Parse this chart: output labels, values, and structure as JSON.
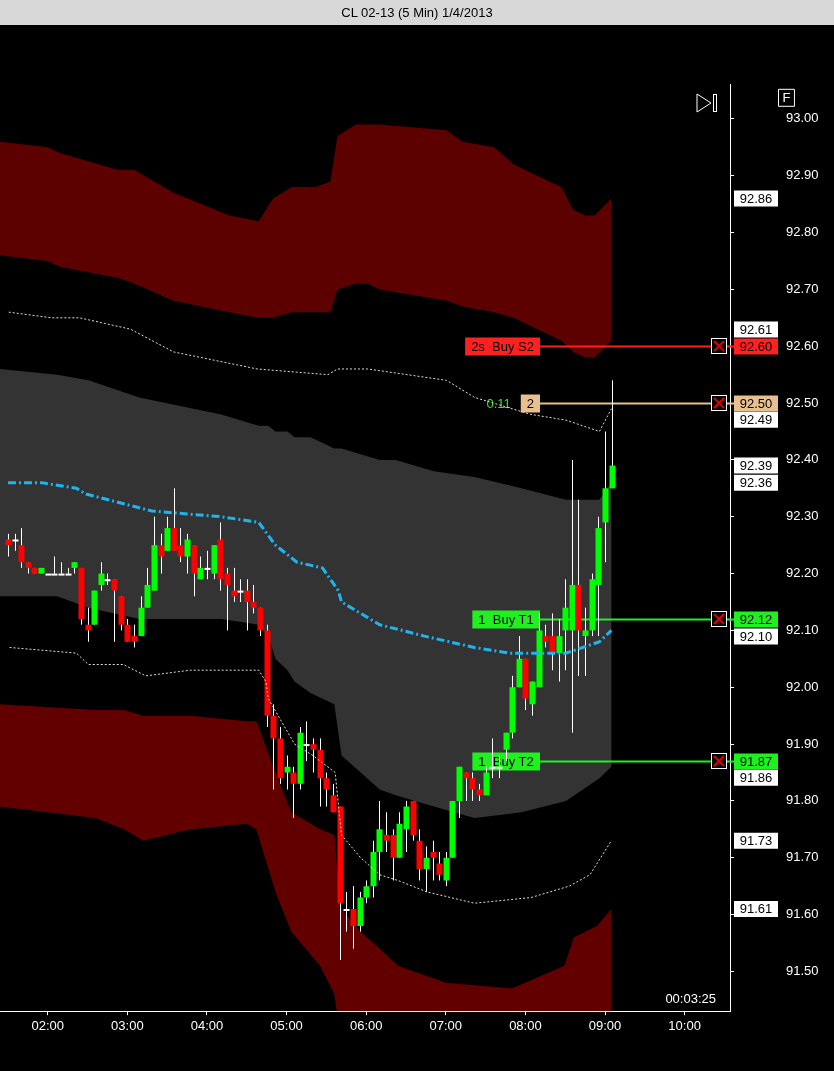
{
  "chart_data": {
    "type": "candlestick",
    "title": "CL 02-13 (5 Min)  1/4/2013",
    "x": [
      1.5,
      1.5833,
      1.6667,
      1.75,
      1.8333,
      1.9167,
      2,
      2.0833,
      2.1667,
      2.25,
      2.3333,
      2.4167,
      2.5,
      2.5833,
      2.6667,
      2.75,
      2.8333,
      2.9167,
      3,
      3.0833,
      3.1667,
      3.25,
      3.3333,
      3.4167,
      3.5,
      3.5833,
      3.6667,
      3.75,
      3.8333,
      3.9167,
      4,
      4.0833,
      4.1667,
      4.25,
      4.3333,
      4.4167,
      4.5,
      4.5833,
      4.6667,
      4.75,
      4.8333,
      4.9167,
      5,
      5.0833,
      5.1667,
      5.25,
      5.3333,
      5.4167,
      5.5,
      5.5833,
      5.6667,
      5.75,
      5.8333,
      5.9167,
      6,
      6.0833,
      6.1667,
      6.25,
      6.3333,
      6.4167,
      6.5,
      6.5833,
      6.6667,
      6.75,
      6.8333,
      6.9167,
      7,
      7.0833,
      7.1667,
      7.25,
      7.3333,
      7.4167,
      7.5,
      7.5833,
      7.6667,
      7.75,
      7.8333,
      7.9167,
      8,
      8.0833,
      8.1667,
      8.25,
      8.3333,
      8.4167,
      8.5,
      8.5833,
      8.6667,
      8.75,
      8.8333,
      8.9167,
      9,
      9.0833
    ],
    "ohlc": [
      [
        92.26,
        92.27,
        92.23,
        92.25
      ],
      [
        92.26,
        92.27,
        92.24,
        92.26
      ],
      [
        92.25,
        92.28,
        92.21,
        92.22
      ],
      [
        92.22,
        92.22,
        92.2,
        92.21
      ],
      [
        92.21,
        92.21,
        92.2,
        92.2
      ],
      [
        92.2,
        92.21,
        92.2,
        92.21
      ],
      [
        92.2,
        92.2,
        92.2,
        92.2
      ],
      [
        92.2,
        92.23,
        92.2,
        92.2
      ],
      [
        92.2,
        92.22,
        92.2,
        92.2
      ],
      [
        92.2,
        92.21,
        92.2,
        92.2
      ],
      [
        92.21,
        92.22,
        92.2,
        92.22
      ],
      [
        92.21,
        92.21,
        92.11,
        92.12
      ],
      [
        92.11,
        92.14,
        92.08,
        92.1
      ],
      [
        92.11,
        92.17,
        92.11,
        92.17
      ],
      [
        92.18,
        92.22,
        92.17,
        92.2
      ],
      [
        92.19,
        92.2,
        92.18,
        92.19
      ],
      [
        92.19,
        92.19,
        92.08,
        92.17
      ],
      [
        92.16,
        92.16,
        92.1,
        92.11
      ],
      [
        92.11,
        92.12,
        92.08,
        92.08
      ],
      [
        92.09,
        92.11,
        92.07,
        92.08
      ],
      [
        92.09,
        92.16,
        92.09,
        92.14
      ],
      [
        92.14,
        92.21,
        92.14,
        92.18
      ],
      [
        92.17,
        92.3,
        92.17,
        92.25
      ],
      [
        92.25,
        92.27,
        92.2,
        92.23
      ],
      [
        92.24,
        92.3,
        92.24,
        92.28
      ],
      [
        92.28,
        92.35,
        92.24,
        92.24
      ],
      [
        92.25,
        92.28,
        92.22,
        92.23
      ],
      [
        92.23,
        92.27,
        92.2,
        92.26
      ],
      [
        92.25,
        92.25,
        92.16,
        92.2
      ],
      [
        92.19,
        92.23,
        92.19,
        92.21
      ],
      [
        92.21,
        92.24,
        92.19,
        92.21
      ],
      [
        92.2,
        92.25,
        92.19,
        92.25
      ],
      [
        92.26,
        92.29,
        92.17,
        92.19
      ],
      [
        92.2,
        92.21,
        92.1,
        92.18
      ],
      [
        92.17,
        92.21,
        92.15,
        92.16
      ],
      [
        92.17,
        92.19,
        92.15,
        92.17
      ],
      [
        92.17,
        92.19,
        92.1,
        92.15
      ],
      [
        92.15,
        92.18,
        92.13,
        92.14
      ],
      [
        92.14,
        92.14,
        92.09,
        92.1
      ],
      [
        92.1,
        92.11,
        91.93,
        91.95
      ],
      [
        91.95,
        91.97,
        91.82,
        91.91
      ],
      [
        91.91,
        91.93,
        91.83,
        91.84
      ],
      [
        91.85,
        91.88,
        91.82,
        91.86
      ],
      [
        91.85,
        91.86,
        91.77,
        91.83
      ],
      [
        91.83,
        91.93,
        91.82,
        91.92
      ],
      [
        91.9,
        91.94,
        91.87,
        91.9
      ],
      [
        91.9,
        91.91,
        91.85,
        91.89
      ],
      [
        91.89,
        91.91,
        91.79,
        91.84
      ],
      [
        91.84,
        91.85,
        91.79,
        91.82
      ],
      [
        91.81,
        91.83,
        91.78,
        91.78
      ],
      [
        91.79,
        91.79,
        91.52,
        91.62
      ],
      [
        91.61,
        91.64,
        91.57,
        91.61
      ],
      [
        91.61,
        91.65,
        91.54,
        91.58
      ],
      [
        91.58,
        91.64,
        91.57,
        91.63
      ],
      [
        91.63,
        91.66,
        91.62,
        91.65
      ],
      [
        91.65,
        91.73,
        91.63,
        91.71
      ],
      [
        91.71,
        91.8,
        91.66,
        91.75
      ],
      [
        91.74,
        91.78,
        91.71,
        91.73
      ],
      [
        91.74,
        91.75,
        91.66,
        91.7
      ],
      [
        91.7,
        91.78,
        91.7,
        91.76
      ],
      [
        91.75,
        91.8,
        91.71,
        91.79
      ],
      [
        91.8,
        91.8,
        91.73,
        91.74
      ],
      [
        91.73,
        91.75,
        91.66,
        91.68
      ],
      [
        91.68,
        91.72,
        91.64,
        91.7
      ],
      [
        91.71,
        91.73,
        91.66,
        91.7
      ],
      [
        91.69,
        91.71,
        91.66,
        91.67
      ],
      [
        91.66,
        91.71,
        91.65,
        91.7
      ],
      [
        91.7,
        91.8,
        91.7,
        91.8
      ],
      [
        91.8,
        91.86,
        91.77,
        91.86
      ],
      [
        91.85,
        91.85,
        91.8,
        91.84
      ],
      [
        91.84,
        91.85,
        91.8,
        91.82
      ],
      [
        91.82,
        91.83,
        91.8,
        91.81
      ],
      [
        91.81,
        91.86,
        91.81,
        91.85
      ],
      [
        91.86,
        91.91,
        91.84,
        91.86
      ],
      [
        91.86,
        91.88,
        91.84,
        91.86
      ],
      [
        91.89,
        91.92,
        91.87,
        91.92
      ],
      [
        91.92,
        92.02,
        91.91,
        92
      ],
      [
        92,
        92.09,
        92,
        92.05
      ],
      [
        92.05,
        92.05,
        91.96,
        91.98
      ],
      [
        91.97,
        92.01,
        91.95,
        92.01
      ],
      [
        92,
        92.13,
        92,
        92.1
      ],
      [
        92.09,
        92.11,
        92.07,
        92.08
      ],
      [
        92.09,
        92.13,
        92.03,
        92.06
      ],
      [
        92.06,
        92.12,
        92.01,
        92.09
      ],
      [
        92.1,
        92.19,
        92.03,
        92.14
      ],
      [
        92.1,
        92.4,
        91.92,
        92.18
      ],
      [
        92.18,
        92.33,
        92.02,
        92.1
      ],
      [
        92.09,
        92.14,
        92.02,
        92.1
      ],
      [
        92.1,
        92.2,
        92.09,
        92.19
      ],
      [
        92.18,
        92.3,
        92.09,
        92.28
      ],
      [
        92.29,
        92.45,
        92.22,
        92.35
      ],
      [
        92.35,
        92.54,
        92.35,
        92.39
      ]
    ],
    "colors": [
      "#ff0000",
      "#ffffff",
      "#ff0000",
      "#ff0000",
      "#ff0000",
      "#00ff00",
      "#ffffff",
      "#ffffff",
      "#ffffff",
      "#ffffff",
      "#00ff00",
      "#ff0000",
      "#ff0000",
      "#00ff00",
      "#00ff00",
      "#ffffff",
      "#ff0000",
      "#ff0000",
      "#ff0000",
      "#ff0000",
      "#00ff00",
      "#00ff00",
      "#00ff00",
      "#ff0000",
      "#00ff00",
      "#ff0000",
      "#ff0000",
      "#00ff00",
      "#ff0000",
      "#00ff00",
      "#ffffff",
      "#00ff00",
      "#ff0000",
      "#ff0000",
      "#ff0000",
      "#ffffff",
      "#ff0000",
      "#ff0000",
      "#ff0000",
      "#ff0000",
      "#ff0000",
      "#ff0000",
      "#00ff00",
      "#ff0000",
      "#00ff00",
      "#ffffff",
      "#ff0000",
      "#ff0000",
      "#ff0000",
      "#ff0000",
      "#ff0000",
      "#ffffff",
      "#ff0000",
      "#00ff00",
      "#00ff00",
      "#00ff00",
      "#00ff00",
      "#ff0000",
      "#ff0000",
      "#00ff00",
      "#00ff00",
      "#ff0000",
      "#ff0000",
      "#00ff00",
      "#ff0000",
      "#ff0000",
      "#00ff00",
      "#00ff00",
      "#00ff00",
      "#ff0000",
      "#ff0000",
      "#ff0000",
      "#00ff00",
      "#ffffff",
      "#ffffff",
      "#00ff00",
      "#00ff00",
      "#00ff00",
      "#ff0000",
      "#00ff00",
      "#00ff00",
      "#ff0000",
      "#ff0000",
      "#00ff00",
      "#00ff00",
      "#00ff00",
      "#ff0000",
      "#00ff00",
      "#00ff00",
      "#00ff00",
      "#00ff00",
      "#00ff00"
    ],
    "color": "#ffffff",
    "series": [
      {
        "type": "line",
        "color": "#5c0000",
        "x": [
          1.4,
          2,
          2.15,
          2.89,
          3.09,
          3.58,
          4.28,
          4.65,
          4.83,
          5.07,
          5.37,
          5.55,
          5.64,
          5.87,
          6.02,
          6.17,
          7.01,
          7.21,
          7.61,
          7.85,
          8.15,
          8.45,
          8.6,
          8.75,
          8.87,
          9.08
        ],
        "values": [
          null,
          null,
          null,
          null,
          null,
          null,
          null,
          null,
          null,
          null,
          null,
          null,
          null,
          null,
          null,
          null,
          null,
          null,
          null,
          null,
          null,
          null,
          null,
          null,
          null,
          null
        ],
        "upper": [
          92.96,
          92.95,
          92.94,
          92.91,
          92.91,
          92.87,
          92.83,
          92.82,
          92.86,
          92.88,
          92.88,
          92.89,
          92.97,
          92.99,
          92.99,
          92.99,
          92.98,
          92.96,
          92.95,
          92.92,
          92.9,
          92.88,
          92.84,
          92.83,
          92.83,
          92.86
        ],
        "lower": [
          92.76,
          92.75,
          92.74,
          92.72,
          92.71,
          92.68,
          92.66,
          92.65,
          92.65,
          92.66,
          92.66,
          92.66,
          92.7,
          92.71,
          92.71,
          92.7,
          92.68,
          92.67,
          92.66,
          92.65,
          92.63,
          92.61,
          92.59,
          92.58,
          92.58,
          92.61
        ]
      },
      {
        "type": "line",
        "color": "#620000",
        "x": [
          1.4,
          2.6,
          2.96,
          3.2,
          3.79,
          4.5,
          4.62,
          4.86,
          5.06,
          5.42,
          5.6,
          5.63,
          5.69,
          5.93,
          6.17,
          6.4,
          7,
          7.83,
          8.49,
          8.61,
          8.9,
          9.08
        ],
        "values": [
          null,
          null,
          null,
          null,
          null,
          null,
          null,
          null,
          null,
          null,
          null,
          null,
          null,
          null,
          null,
          null,
          null,
          null,
          null,
          null,
          null,
          null
        ],
        "upper": [
          91.97,
          91.96,
          91.96,
          91.95,
          91.95,
          91.94,
          91.94,
          91.85,
          91.78,
          91.75,
          91.74,
          91.69,
          91.61,
          91.57,
          91.54,
          91.51,
          91.48,
          91.47,
          91.51,
          91.56,
          91.58,
          91.61
        ],
        "lower": [
          91.79,
          91.77,
          91.75,
          91.73,
          91.75,
          91.76,
          91.75,
          91.64,
          91.57,
          91.51,
          91.46,
          91.43,
          91.43,
          91.43,
          91.43,
          91.43,
          91.43,
          91.43,
          91.43,
          91.43,
          91.43,
          91.43
        ]
      },
      {
        "type": "line",
        "color": "#333333",
        "x": [
          1.4,
          2.12,
          2.51,
          3.15,
          4.18,
          4.65,
          4.77,
          4.86,
          5.01,
          5.1,
          5.3,
          5.6,
          5.69,
          5.93,
          6.17,
          6.37,
          6.85,
          7.36,
          7.95,
          8.51,
          8.93,
          9.08
        ],
        "values": [
          null,
          null,
          null,
          null,
          null,
          null,
          null,
          null,
          null,
          null,
          null,
          null,
          null,
          null,
          null,
          null,
          null,
          null,
          null,
          null,
          null,
          null
        ],
        "upper": [
          92.56,
          92.55,
          92.54,
          92.51,
          92.48,
          92.46,
          92.46,
          92.45,
          92.45,
          92.44,
          92.44,
          92.42,
          92.42,
          92.41,
          92.4,
          92.4,
          92.38,
          92.37,
          92.35,
          92.33,
          92.33,
          92.36
        ],
        "lower": [
          92.16,
          92.16,
          92.14,
          92.12,
          92.12,
          92.11,
          92.09,
          92.05,
          92.03,
          92.01,
          91.99,
          91.97,
          91.88,
          91.85,
          91.82,
          91.81,
          91.79,
          91.77,
          91.78,
          91.8,
          91.84,
          91.86
        ]
      },
      {
        "type": "line",
        "color": "#dddddd",
        "line_style": "dotted",
        "x": [
          1.51,
          2.05,
          2.4,
          3.04,
          3.58,
          4.63,
          5.52,
          5.64,
          6.02,
          7.01,
          7.36,
          8.07,
          8.51,
          8.93,
          9.08
        ],
        "values": [
          92.66,
          92.65,
          92.65,
          92.63,
          92.59,
          92.56,
          92.55,
          92.56,
          92.56,
          92.54,
          92.51,
          92.48,
          92.47,
          92.45,
          92.49
        ]
      },
      {
        "type": "line",
        "color": "#dddddd",
        "line_style": "dotted",
        "x": [
          1.52,
          2.36,
          2.51,
          2.95,
          3.23,
          3.79,
          4.65,
          4.74,
          4.77,
          5.1,
          5.33,
          5.61,
          5.69,
          5.93,
          6.17,
          6.4,
          6.76,
          7.36,
          8.07,
          8.55,
          8.81,
          9.08
        ],
        "values": [
          92.07,
          92.06,
          92.04,
          92.04,
          92.02,
          92.03,
          92.03,
          92.01,
          91.98,
          91.9,
          91.88,
          91.85,
          91.74,
          91.7,
          91.67,
          91.66,
          91.64,
          91.62,
          91.63,
          91.65,
          91.67,
          91.73
        ]
      },
      {
        "type": "line",
        "color": "#1eb4f0",
        "line_style": "dashed",
        "x": [
          1.5,
          1.92,
          2.36,
          2.48,
          3.31,
          4.18,
          4.65,
          4.86,
          5.13,
          5.45,
          5.65,
          5.69,
          6.17,
          6.73,
          7.36,
          7.8,
          8.51,
          8.93,
          9.08
        ],
        "values": [
          92.36,
          92.36,
          92.35,
          92.34,
          92.31,
          92.3,
          92.29,
          92.25,
          92.22,
          92.21,
          92.17,
          92.15,
          92.11,
          92.09,
          92.07,
          92.06,
          92.06,
          92.08,
          92.1
        ]
      }
    ],
    "ref_lines": [
      {
        "axis": "y",
        "value": 92.6,
        "label": "92.60",
        "color": "#ff2020"
      },
      {
        "axis": "y",
        "value": 92.5,
        "label": "92.50",
        "color": "#e8c090"
      },
      {
        "axis": "y",
        "value": 92.12,
        "label": "92.12",
        "color": "#20f020"
      },
      {
        "axis": "y",
        "value": 91.87,
        "label": "91.87",
        "color": "#20f020"
      }
    ],
    "annotations": [
      "00:03:25",
      "F",
      "2s  Buy S2",
      "0.11",
      "2",
      "1  Buy T1",
      "1  Buy T2",
      "92.86",
      "92.61",
      "92.49",
      "92.39",
      "92.36",
      "92.10",
      "91.86",
      "91.73",
      "91.61"
    ],
    "xlim": [
      1.4,
      10.57
    ],
    "xticks": [
      {
        "value": 2,
        "label": "02:00"
      },
      {
        "value": 3,
        "label": "03:00"
      },
      {
        "value": 4,
        "label": "04:00"
      },
      {
        "value": 5,
        "label": "05:00"
      },
      {
        "value": 6,
        "label": "06:00"
      },
      {
        "value": 7,
        "label": "07:00"
      },
      {
        "value": 8,
        "label": "08:00"
      },
      {
        "value": 9,
        "label": "09:00"
      },
      {
        "value": 10,
        "label": "10:00"
      }
    ],
    "ylim": [
      91.43,
      93.06
    ],
    "yticks": [
      {
        "value": 91.5,
        "label": "91.50"
      },
      {
        "value": 91.6,
        "label": "91.60"
      },
      {
        "value": 91.7,
        "label": "91.70"
      },
      {
        "value": 91.8,
        "label": "91.80"
      },
      {
        "value": 91.9,
        "label": "91.90"
      },
      {
        "value": 92,
        "label": "92.00"
      },
      {
        "value": 92.1,
        "label": "92.10"
      },
      {
        "value": 92.2,
        "label": "92.20"
      },
      {
        "value": 92.3,
        "label": "92.30"
      },
      {
        "value": 92.4,
        "label": "92.40"
      },
      {
        "value": 92.5,
        "label": "92.50"
      },
      {
        "value": 92.6,
        "label": "92.60"
      },
      {
        "value": 92.7,
        "label": "92.70"
      },
      {
        "value": 92.8,
        "label": "92.80"
      },
      {
        "value": 92.9,
        "label": "92.90"
      },
      {
        "value": 93,
        "label": "93.00"
      }
    ]
  }
}
